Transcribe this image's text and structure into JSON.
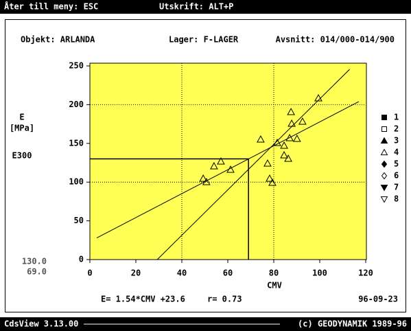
{
  "header": {
    "menu": "Åter till meny: ESC",
    "print": "Utskrift: ALT+P"
  },
  "footer": {
    "version": "CdsView 3.13.00",
    "copyright": "(c) GEODYNAMIK 1989-96"
  },
  "chart_data": {
    "type": "scatter",
    "object": "Objekt: ARLANDA",
    "layer": "Lager: F-LAGER",
    "section": "Avsnitt: 014/000-014/900",
    "ylabel": [
      "E",
      "[MPa]"
    ],
    "xlabel": "CMV",
    "equation": "E= 1.54*CMV +23.6",
    "r": "r= 0.73",
    "date": "96-09-23",
    "e300": {
      "label": "E300",
      "x": 69,
      "y": 130,
      "x_label": "69.0",
      "y_label": "130.0"
    },
    "xlim": [
      0,
      120
    ],
    "ylim": [
      0,
      250
    ],
    "xticks": [
      0,
      20,
      40,
      60,
      80,
      100,
      120
    ],
    "yticks": [
      0,
      50,
      100,
      150,
      200,
      250
    ],
    "xgrid": [
      40,
      80
    ],
    "ygrid": [
      100,
      200
    ],
    "background": "#ffff55",
    "lines": [
      {
        "x": [
          3,
          117
        ],
        "y": [
          28,
          204
        ]
      },
      {
        "x": [
          29.3,
          113
        ],
        "y": [
          0,
          245.6
        ]
      }
    ],
    "series": [
      {
        "name": "1",
        "marker": "square",
        "filled": true,
        "x": [],
        "values": []
      },
      {
        "name": "2",
        "marker": "square",
        "filled": false,
        "x": [],
        "values": []
      },
      {
        "name": "3",
        "marker": "triangle",
        "filled": true,
        "x": [],
        "values": []
      },
      {
        "name": "4",
        "marker": "triangle",
        "filled": false,
        "x": [
          49.3,
          50.7,
          54,
          57,
          61.2,
          74.3,
          77.3,
          78.2,
          79.4,
          81.5,
          84.5,
          84.5,
          86.3,
          86.9,
          87.5,
          87.8,
          90.1,
          92.5,
          99.4
        ],
        "values": [
          104.6,
          100.2,
          120.6,
          126.8,
          116.1,
          155.1,
          124.1,
          104.6,
          99.3,
          150.7,
          147.2,
          134.8,
          130.3,
          156.9,
          190.6,
          175.5,
          156,
          178.2,
          208.3
        ]
      },
      {
        "name": "5",
        "marker": "diamond",
        "filled": true,
        "x": [],
        "values": []
      },
      {
        "name": "6",
        "marker": "diamond",
        "filled": false,
        "x": [],
        "values": []
      },
      {
        "name": "7",
        "marker": "triangle-down",
        "filled": true,
        "x": [],
        "values": []
      },
      {
        "name": "8",
        "marker": "triangle-down",
        "filled": false,
        "x": [],
        "values": []
      }
    ]
  }
}
